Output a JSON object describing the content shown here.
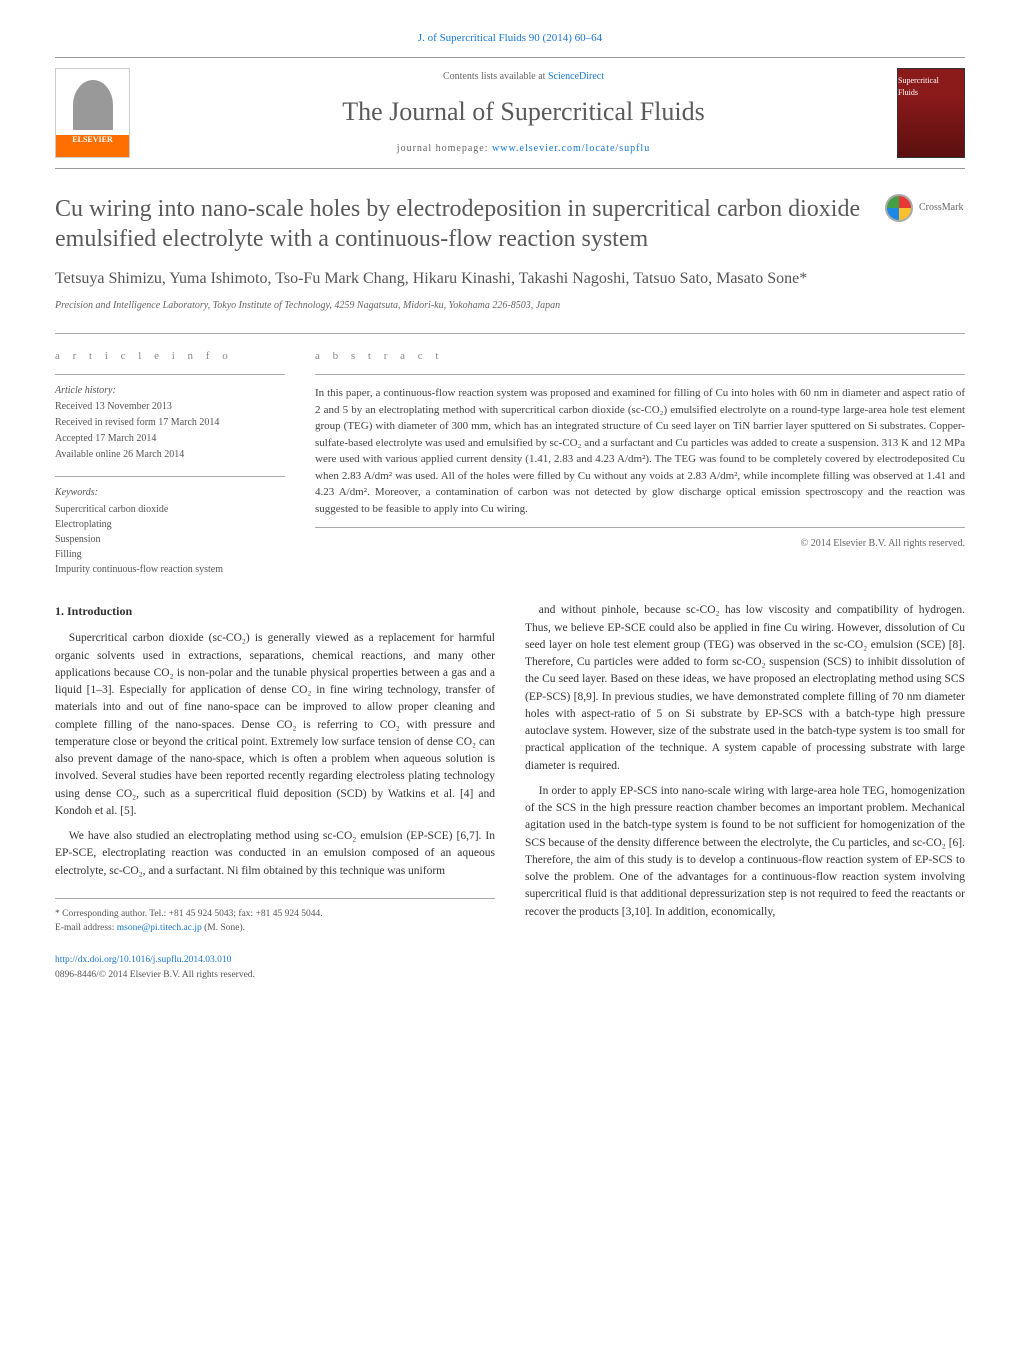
{
  "header": {
    "citation": "J. of Supercritical Fluids 90 (2014) 60–64",
    "contents_available": "Contents lists available at ",
    "sciencedirect": "ScienceDirect",
    "journal_name": "The Journal of Supercritical Fluids",
    "homepage_label": "journal homepage: ",
    "homepage_url": "www.elsevier.com/locate/supflu",
    "elsevier": "ELSEVIER",
    "cover_text": "Supercritical Fluids"
  },
  "article": {
    "title": "Cu wiring into nano-scale holes by electrodeposition in supercritical carbon dioxide emulsified electrolyte with a continuous-flow reaction system",
    "crossmark": "CrossMark",
    "authors": "Tetsuya Shimizu, Yuma Ishimoto, Tso-Fu Mark Chang, Hikaru Kinashi, Takashi Nagoshi, Tatsuo Sato, Masato Sone*",
    "affiliation": "Precision and Intelligence Laboratory, Tokyo Institute of Technology, 4259 Nagatsuta, Midori-ku, Yokohama 226-8503, Japan"
  },
  "info": {
    "article_info_label": "a r t i c l e   i n f o",
    "abstract_label": "a b s t r a c t",
    "history_heading": "Article history:",
    "history": {
      "received": "Received 13 November 2013",
      "revised": "Received in revised form 17 March 2014",
      "accepted": "Accepted 17 March 2014",
      "online": "Available online 26 March 2014"
    },
    "keywords_heading": "Keywords:",
    "keywords": [
      "Supercritical carbon dioxide",
      "Electroplating",
      "Suspension",
      "Filling",
      "Impurity continuous-flow reaction system"
    ],
    "abstract_text": "In this paper, a continuous-flow reaction system was proposed and examined for filling of Cu into holes with 60 nm in diameter and aspect ratio of 2 and 5 by an electroplating method with supercritical carbon dioxide (sc-CO₂) emulsified electrolyte on a round-type large-area hole test element group (TEG) with diameter of 300 mm, which has an integrated structure of Cu seed layer on TiN barrier layer sputtered on Si substrates. Copper-sulfate-based electrolyte was used and emulsified by sc-CO₂ and a surfactant and Cu particles was added to create a suspension. 313 K and 12 MPa were used with various applied current density (1.41, 2.83 and 4.23 A/dm²). The TEG was found to be completely covered by electrodeposited Cu when 2.83 A/dm² was used. All of the holes were filled by Cu without any voids at 2.83 A/dm², while incomplete filling was observed at 1.41 and 4.23 A/dm². Moreover, a contamination of carbon was not detected by glow discharge optical emission spectroscopy and the reaction was suggested to be feasible to apply into Cu wiring.",
    "copyright": "© 2014 Elsevier B.V. All rights reserved."
  },
  "body": {
    "intro_heading": "1. Introduction",
    "col1_p1": "Supercritical carbon dioxide (sc-CO₂) is generally viewed as a replacement for harmful organic solvents used in extractions, separations, chemical reactions, and many other applications because CO₂ is non-polar and the tunable physical properties between a gas and a liquid [1–3]. Especially for application of dense CO₂ in fine wiring technology, transfer of materials into and out of fine nano-space can be improved to allow proper cleaning and complete filling of the nano-spaces. Dense CO₂ is referring to CO₂ with pressure and temperature close or beyond the critical point. Extremely low surface tension of dense CO₂ can also prevent damage of the nano-space, which is often a problem when aqueous solution is involved. Several studies have been reported recently regarding electroless plating technology using dense CO₂, such as a supercritical fluid deposition (SCD) by Watkins et al. [4] and Kondoh et al. [5].",
    "col1_p2": "We have also studied an electroplating method using sc-CO₂ emulsion (EP-SCE) [6,7]. In EP-SCE, electroplating reaction was conducted in an emulsion composed of an aqueous electrolyte, sc-CO₂, and a surfactant. Ni film obtained by this technique was uniform",
    "col2_p1": "and without pinhole, because sc-CO₂ has low viscosity and compatibility of hydrogen. Thus, we believe EP-SCE could also be applied in fine Cu wiring. However, dissolution of Cu seed layer on hole test element group (TEG) was observed in the sc-CO₂ emulsion (SCE) [8]. Therefore, Cu particles were added to form sc-CO₂ suspension (SCS) to inhibit dissolution of the Cu seed layer. Based on these ideas, we have proposed an electroplating method using SCS (EP-SCS) [8,9]. In previous studies, we have demonstrated complete filling of 70 nm diameter holes with aspect-ratio of 5 on Si substrate by EP-SCS with a batch-type high pressure autoclave system. However, size of the substrate used in the batch-type system is too small for practical application of the technique. A system capable of processing substrate with large diameter is required.",
    "col2_p2": "In order to apply EP-SCS into nano-scale wiring with large-area hole TEG, homogenization of the SCS in the high pressure reaction chamber becomes an important problem. Mechanical agitation used in the batch-type system is found to be not sufficient for homogenization of the SCS because of the density difference between the electrolyte, the Cu particles, and sc-CO₂ [6]. Therefore, the aim of this study is to develop a continuous-flow reaction system of EP-SCS to solve the problem. One of the advantages for a continuous-flow reaction system involving supercritical fluid is that additional depressurization step is not required to feed the reactants or recover the products [3,10]. In addition, economically,"
  },
  "footer": {
    "corresponding": "* Corresponding author. Tel.: +81 45 924 5043; fax: +81 45 924 5044.",
    "email_label": "E-mail address: ",
    "email": "msone@pi.titech.ac.jp",
    "email_author": " (M. Sone).",
    "doi_url": "http://dx.doi.org/10.1016/j.supflu.2014.03.010",
    "issn": "0896-8446/© 2014 Elsevier B.V. All rights reserved."
  },
  "colors": {
    "link": "#1976d2",
    "text": "#333333",
    "muted": "#666666",
    "rule": "#aaaaaa",
    "elsevier_orange": "#ff6f00",
    "cover_red": "#8b1a1a"
  }
}
